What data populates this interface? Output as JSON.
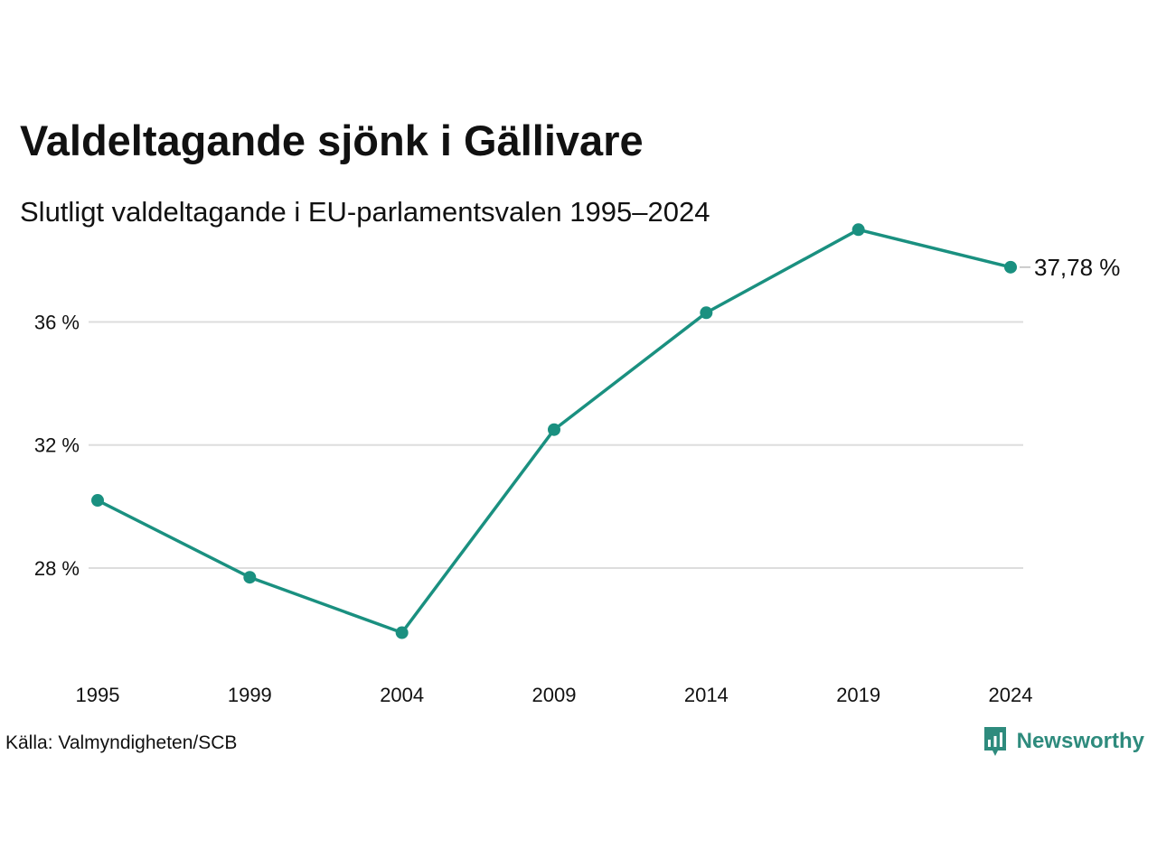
{
  "title": "Valdeltagande sjönk i Gällivare",
  "subtitle": "Slutligt valdeltagande i EU-parlamentsvalen 1995–2024",
  "source": "Källa: Valmyndigheten/SCB",
  "brand": "Newsworthy",
  "colors": {
    "line": "#1a9080",
    "grid": "#dddddd",
    "text": "#111111",
    "brand": "#2e8b7d"
  },
  "chart_data": {
    "type": "line",
    "x": [
      "1995",
      "1999",
      "2004",
      "2009",
      "2014",
      "2019",
      "2024"
    ],
    "series": [
      {
        "values": [
          30.2,
          27.7,
          25.9,
          32.5,
          36.3,
          39.0,
          37.78
        ]
      }
    ],
    "y_ticks": [
      28,
      32,
      36
    ],
    "y_tick_labels": [
      "28 %",
      "32 %",
      "36 %"
    ],
    "ylim": [
      24.33,
      40.33
    ],
    "end_label": "37,78 %",
    "grid": true,
    "xlabel": "",
    "ylabel": ""
  }
}
